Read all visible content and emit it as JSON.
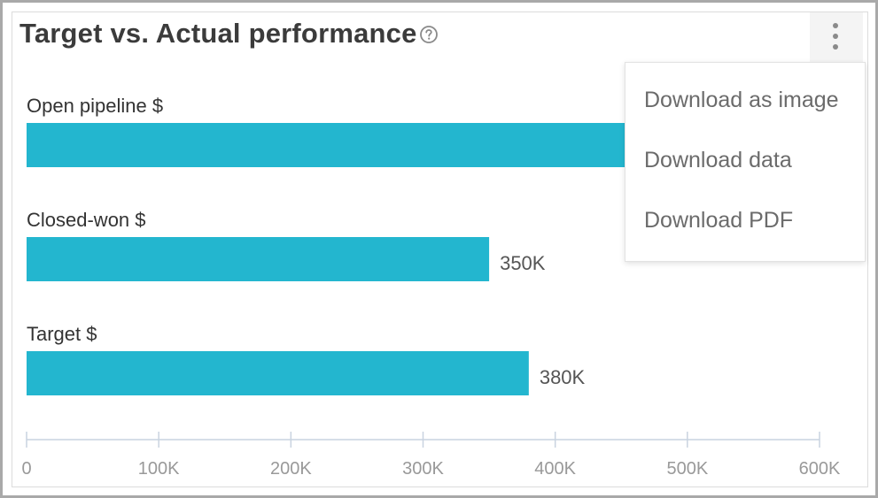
{
  "title": "Target vs. Actual performance",
  "menu": {
    "items": [
      "Download as image",
      "Download data",
      "Download PDF"
    ]
  },
  "colors": {
    "bar": "#23b6cf",
    "axis": "#c9d3e0"
  },
  "icons": {
    "help": "help-circle-icon",
    "more": "more-vertical-icon"
  },
  "chart_data": {
    "type": "bar",
    "orientation": "horizontal",
    "categories": [
      "Open pipeline $",
      "Closed-won $",
      "Target $"
    ],
    "values": [
      560000,
      350000,
      380000
    ],
    "data_labels": [
      "",
      "350K",
      "380K"
    ],
    "xlim": [
      0,
      600000
    ],
    "xticks": [
      0,
      100000,
      200000,
      300000,
      400000,
      500000,
      600000
    ],
    "xtick_labels": [
      "0",
      "100K",
      "200K",
      "300K",
      "400K",
      "500K",
      "600K"
    ],
    "grid": false,
    "legend": "none"
  }
}
